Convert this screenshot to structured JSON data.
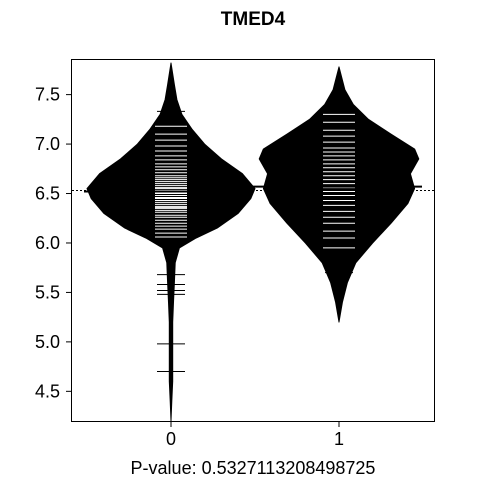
{
  "chart_data": {
    "type": "beanplot",
    "title": "TMED4",
    "xlabel": "P-value: 0.5327113208498725",
    "ylabel": "",
    "ylim": [
      4.2,
      7.85
    ],
    "y_ticks": [
      4.5,
      5.0,
      5.5,
      6.0,
      6.5,
      7.0,
      7.5
    ],
    "y_tick_labels": [
      "4.5",
      "5.0",
      "5.5",
      "6.0",
      "6.5",
      "7.0",
      "7.5"
    ],
    "categories": [
      "0",
      "1"
    ],
    "overall_mean": 6.53,
    "groups": [
      {
        "category": "0",
        "mean": 6.52,
        "range": [
          4.2,
          7.82
        ],
        "density": [
          [
            4.2,
            0.0
          ],
          [
            4.4,
            0.01
          ],
          [
            4.6,
            0.02
          ],
          [
            4.8,
            0.02
          ],
          [
            5.0,
            0.02
          ],
          [
            5.2,
            0.02
          ],
          [
            5.4,
            0.03
          ],
          [
            5.6,
            0.04
          ],
          [
            5.8,
            0.05
          ],
          [
            5.95,
            0.1
          ],
          [
            6.05,
            0.3
          ],
          [
            6.15,
            0.55
          ],
          [
            6.3,
            0.8
          ],
          [
            6.45,
            0.95
          ],
          [
            6.55,
            1.0
          ],
          [
            6.7,
            0.85
          ],
          [
            6.85,
            0.6
          ],
          [
            7.0,
            0.4
          ],
          [
            7.15,
            0.25
          ],
          [
            7.3,
            0.13
          ],
          [
            7.45,
            0.07
          ],
          [
            7.6,
            0.04
          ],
          [
            7.82,
            0.0
          ]
        ],
        "observations": [
          4.7,
          4.98,
          5.48,
          5.52,
          5.58,
          5.68,
          6.06,
          6.1,
          6.14,
          6.17,
          6.2,
          6.23,
          6.26,
          6.28,
          6.31,
          6.33,
          6.35,
          6.36,
          6.37,
          6.39,
          6.41,
          6.43,
          6.45,
          6.46,
          6.48,
          6.5,
          6.51,
          6.53,
          6.55,
          6.56,
          6.58,
          6.6,
          6.62,
          6.64,
          6.66,
          6.68,
          6.71,
          6.74,
          6.77,
          6.8,
          6.84,
          6.88,
          6.93,
          6.98,
          7.04,
          7.1,
          7.18,
          7.26,
          7.33
        ]
      },
      {
        "category": "1",
        "mean": 6.57,
        "range": [
          5.2,
          7.78
        ],
        "density": [
          [
            5.2,
            0.0
          ],
          [
            5.4,
            0.04
          ],
          [
            5.6,
            0.1
          ],
          [
            5.8,
            0.2
          ],
          [
            6.0,
            0.4
          ],
          [
            6.2,
            0.62
          ],
          [
            6.4,
            0.82
          ],
          [
            6.55,
            0.9
          ],
          [
            6.7,
            0.85
          ],
          [
            6.85,
            0.95
          ],
          [
            6.95,
            0.9
          ],
          [
            7.1,
            0.62
          ],
          [
            7.25,
            0.35
          ],
          [
            7.4,
            0.17
          ],
          [
            7.55,
            0.07
          ],
          [
            7.78,
            0.0
          ]
        ],
        "observations": [
          5.7,
          5.95,
          6.05,
          6.12,
          6.2,
          6.26,
          6.32,
          6.38,
          6.43,
          6.48,
          6.52,
          6.56,
          6.6,
          6.64,
          6.68,
          6.72,
          6.76,
          6.8,
          6.84,
          6.88,
          6.92,
          6.96,
          7.02,
          7.08,
          7.14,
          7.22,
          7.3
        ]
      }
    ]
  }
}
